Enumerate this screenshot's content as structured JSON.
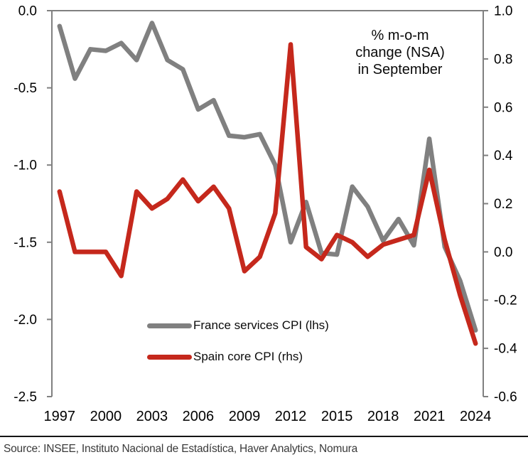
{
  "figure": {
    "annotation": {
      "line1": "% m-o-m",
      "line2": "change (NSA)",
      "line3": "in September"
    },
    "source": "Source: INSEE, Instituto Nacional de Estadística, Haver Analytics, Nomura"
  },
  "style": {
    "background": "#ffffff",
    "axis_color": "#808080",
    "tick_label_color": "#000000",
    "annotation_color": "#0a0a0a",
    "source_color": "#3a3a3a",
    "divider_color": "#141414",
    "france_gray": "#808080",
    "spain_red": "#c5281c"
  },
  "chart_data": {
    "type": "line",
    "title": "",
    "annotation": "% m-o-m change (NSA) in September",
    "grid": false,
    "legend_position": "inside-bottom-left",
    "x": [
      1997,
      1998,
      1999,
      2000,
      2001,
      2002,
      2003,
      2004,
      2005,
      2006,
      2007,
      2008,
      2009,
      2010,
      2011,
      2012,
      2013,
      2014,
      2015,
      2016,
      2017,
      2018,
      2019,
      2020,
      2021,
      2022,
      2023,
      2024
    ],
    "x_tick_labels": [
      "1997",
      "2000",
      "2003",
      "2006",
      "2009",
      "2012",
      "2015",
      "2018",
      "2021",
      "2024"
    ],
    "left_axis": {
      "range": [
        -2.5,
        0.0
      ],
      "ticks": [
        "0.0",
        "-0.5",
        "-1.0",
        "-1.5",
        "-2.0",
        "-2.5"
      ]
    },
    "right_axis": {
      "range": [
        -0.6,
        1.0
      ],
      "ticks": [
        "1.0",
        "0.8",
        "0.6",
        "0.4",
        "0.2",
        "0.0",
        "-0.2",
        "-0.4",
        "-0.6"
      ]
    },
    "series": [
      {
        "name": "France services CPI (lhs)",
        "axis": "left",
        "color": "#808080",
        "values": [
          -0.1,
          -0.44,
          -0.25,
          -0.26,
          -0.21,
          -0.32,
          -0.08,
          -0.32,
          -0.38,
          -0.64,
          -0.58,
          -0.81,
          -0.82,
          -0.8,
          -1.0,
          -1.5,
          -1.24,
          -1.57,
          -1.58,
          -1.14,
          -1.27,
          -1.49,
          -1.35,
          -1.52,
          -0.83,
          -1.53,
          -1.75,
          -2.07
        ]
      },
      {
        "name": "Spain core CPI (rhs)",
        "axis": "right",
        "color": "#c5281c",
        "values": [
          0.25,
          0.0,
          0.0,
          0.0,
          -0.1,
          0.25,
          0.18,
          0.22,
          0.3,
          0.21,
          0.27,
          0.18,
          -0.08,
          -0.02,
          0.16,
          0.86,
          0.02,
          -0.03,
          0.07,
          0.04,
          -0.02,
          0.03,
          0.05,
          0.07,
          0.34,
          0.05,
          -0.18,
          -0.38
        ]
      }
    ]
  }
}
